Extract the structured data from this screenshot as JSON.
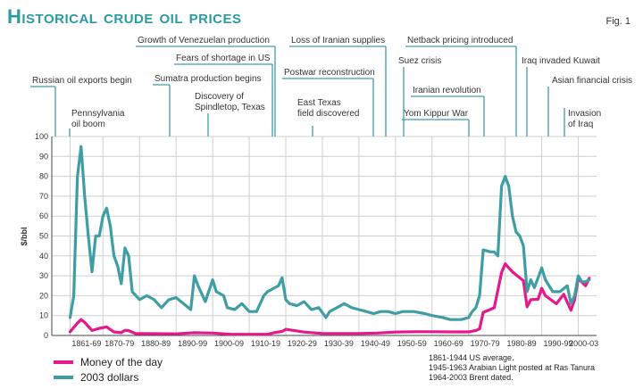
{
  "title": "Historical crude oil prices",
  "fig_label": "Fig. 1",
  "colors": {
    "money_of_the_day": "#e6198c",
    "dollars_2003": "#3e9ea4",
    "annotation_line": "#3e9ea4",
    "grid": "#cfcfcf"
  },
  "notes": [
    "1861-1944 US average.",
    "1945-1963 Arabian Light posted at Ras Tanura",
    "1964-2003 Brent dated."
  ],
  "chart_data": {
    "type": "line",
    "ylabel": "$/bbl",
    "ylim": [
      0,
      100
    ],
    "yticks": [
      0,
      10,
      20,
      30,
      40,
      50,
      60,
      70,
      80,
      90,
      100
    ],
    "xlim": [
      1856,
      2005
    ],
    "xtick_labels": [
      "1861-69",
      "1870-79",
      "1880-89",
      "1890-99",
      "1900-09",
      "1910-19",
      "1920-29",
      "1930-39",
      "1940-49",
      "1950-59",
      "1960-69",
      "1970-79",
      "1980-89",
      "1990-99",
      "2000-03"
    ],
    "grid": true,
    "legend_position": "bottom-left",
    "series": [
      {
        "name": "Money of the day",
        "x": [
          1861,
          1863,
          1864,
          1865,
          1867,
          1869,
          1871,
          1873,
          1875,
          1876,
          1877,
          1879,
          1880,
          1885,
          1890,
          1895,
          1900,
          1905,
          1910,
          1915,
          1917,
          1919,
          1920,
          1925,
          1930,
          1935,
          1940,
          1945,
          1950,
          1955,
          1960,
          1965,
          1970,
          1972,
          1973,
          1974,
          1977,
          1979,
          1980,
          1981,
          1982,
          1985,
          1986,
          1987,
          1989,
          1990,
          1991,
          1994,
          1996,
          1998,
          1999,
          2000,
          2002,
          2003
        ],
        "y": [
          1.9,
          6.2,
          8.0,
          6.6,
          2.5,
          3.6,
          4.3,
          1.8,
          1.4,
          2.6,
          2.4,
          0.9,
          0.95,
          0.9,
          0.8,
          1.4,
          1.2,
          0.6,
          0.6,
          0.6,
          1.5,
          2.0,
          3.1,
          1.7,
          1.0,
          1.0,
          1.0,
          1.2,
          1.7,
          1.9,
          1.9,
          1.8,
          1.8,
          2.5,
          3.3,
          11.6,
          13.9,
          31.6,
          36.0,
          34.0,
          32.0,
          27.5,
          14.4,
          18.0,
          18.2,
          23.7,
          20.0,
          15.9,
          20.7,
          12.7,
          17.9,
          28.5,
          25.0,
          28.8
        ]
      },
      {
        "name": "2003 dollars",
        "x": [
          1861,
          1862,
          1863,
          1864,
          1865,
          1866,
          1867,
          1868,
          1869,
          1870,
          1871,
          1872,
          1873,
          1874,
          1875,
          1876,
          1877,
          1878,
          1879,
          1880,
          1882,
          1884,
          1886,
          1888,
          1890,
          1892,
          1894,
          1895,
          1896,
          1898,
          1900,
          1901,
          1903,
          1904,
          1906,
          1908,
          1910,
          1912,
          1914,
          1915,
          1917,
          1918,
          1919,
          1920,
          1921,
          1923,
          1925,
          1927,
          1929,
          1931,
          1932,
          1934,
          1936,
          1938,
          1940,
          1942,
          1944,
          1946,
          1948,
          1950,
          1952,
          1955,
          1958,
          1960,
          1963,
          1965,
          1968,
          1970,
          1971,
          1972,
          1973,
          1974,
          1976,
          1977,
          1978,
          1979,
          1980,
          1981,
          1982,
          1983,
          1984,
          1985,
          1986,
          1987,
          1988,
          1990,
          1991,
          1993,
          1995,
          1997,
          1998,
          1999,
          2000,
          2001,
          2002,
          2003
        ],
        "y": [
          9,
          20,
          80,
          95,
          70,
          50,
          32,
          50,
          50,
          60,
          64,
          55,
          40,
          35,
          26,
          44,
          40,
          22,
          20,
          18,
          20,
          18,
          14,
          18,
          19,
          16,
          13,
          30,
          25,
          17,
          28,
          22,
          20,
          14,
          13,
          16,
          12,
          12,
          20,
          22,
          24,
          25,
          29,
          18,
          16,
          15,
          17,
          13,
          14,
          9,
          12,
          14,
          16,
          14,
          13,
          12,
          11,
          12,
          12,
          11,
          12,
          12,
          11,
          10,
          9,
          8,
          8,
          9,
          12,
          14,
          20,
          43,
          42,
          42,
          40,
          75,
          80,
          75,
          60,
          52,
          50,
          45,
          22,
          28,
          24,
          34,
          28,
          22,
          22,
          25,
          16,
          20,
          30,
          27,
          27,
          28
        ]
      }
    ],
    "annotations": [
      "Russian oil exports begin",
      "Pennsylvania oil boom",
      "Growth of Venezuelan production",
      "Fears of shortage in US",
      "Sumatra production begins",
      "Discovery of Spindletop, Texas",
      "Loss of Iranian supplies",
      "Postwar reconstruction",
      "East Texas field discovered",
      "Suez crisis",
      "Netback pricing introduced",
      "Iranian revolution",
      "Yom Kippur War",
      "Iraq invaded Kuwait",
      "Asian financial crisis",
      "Invasion of Iraq"
    ]
  }
}
